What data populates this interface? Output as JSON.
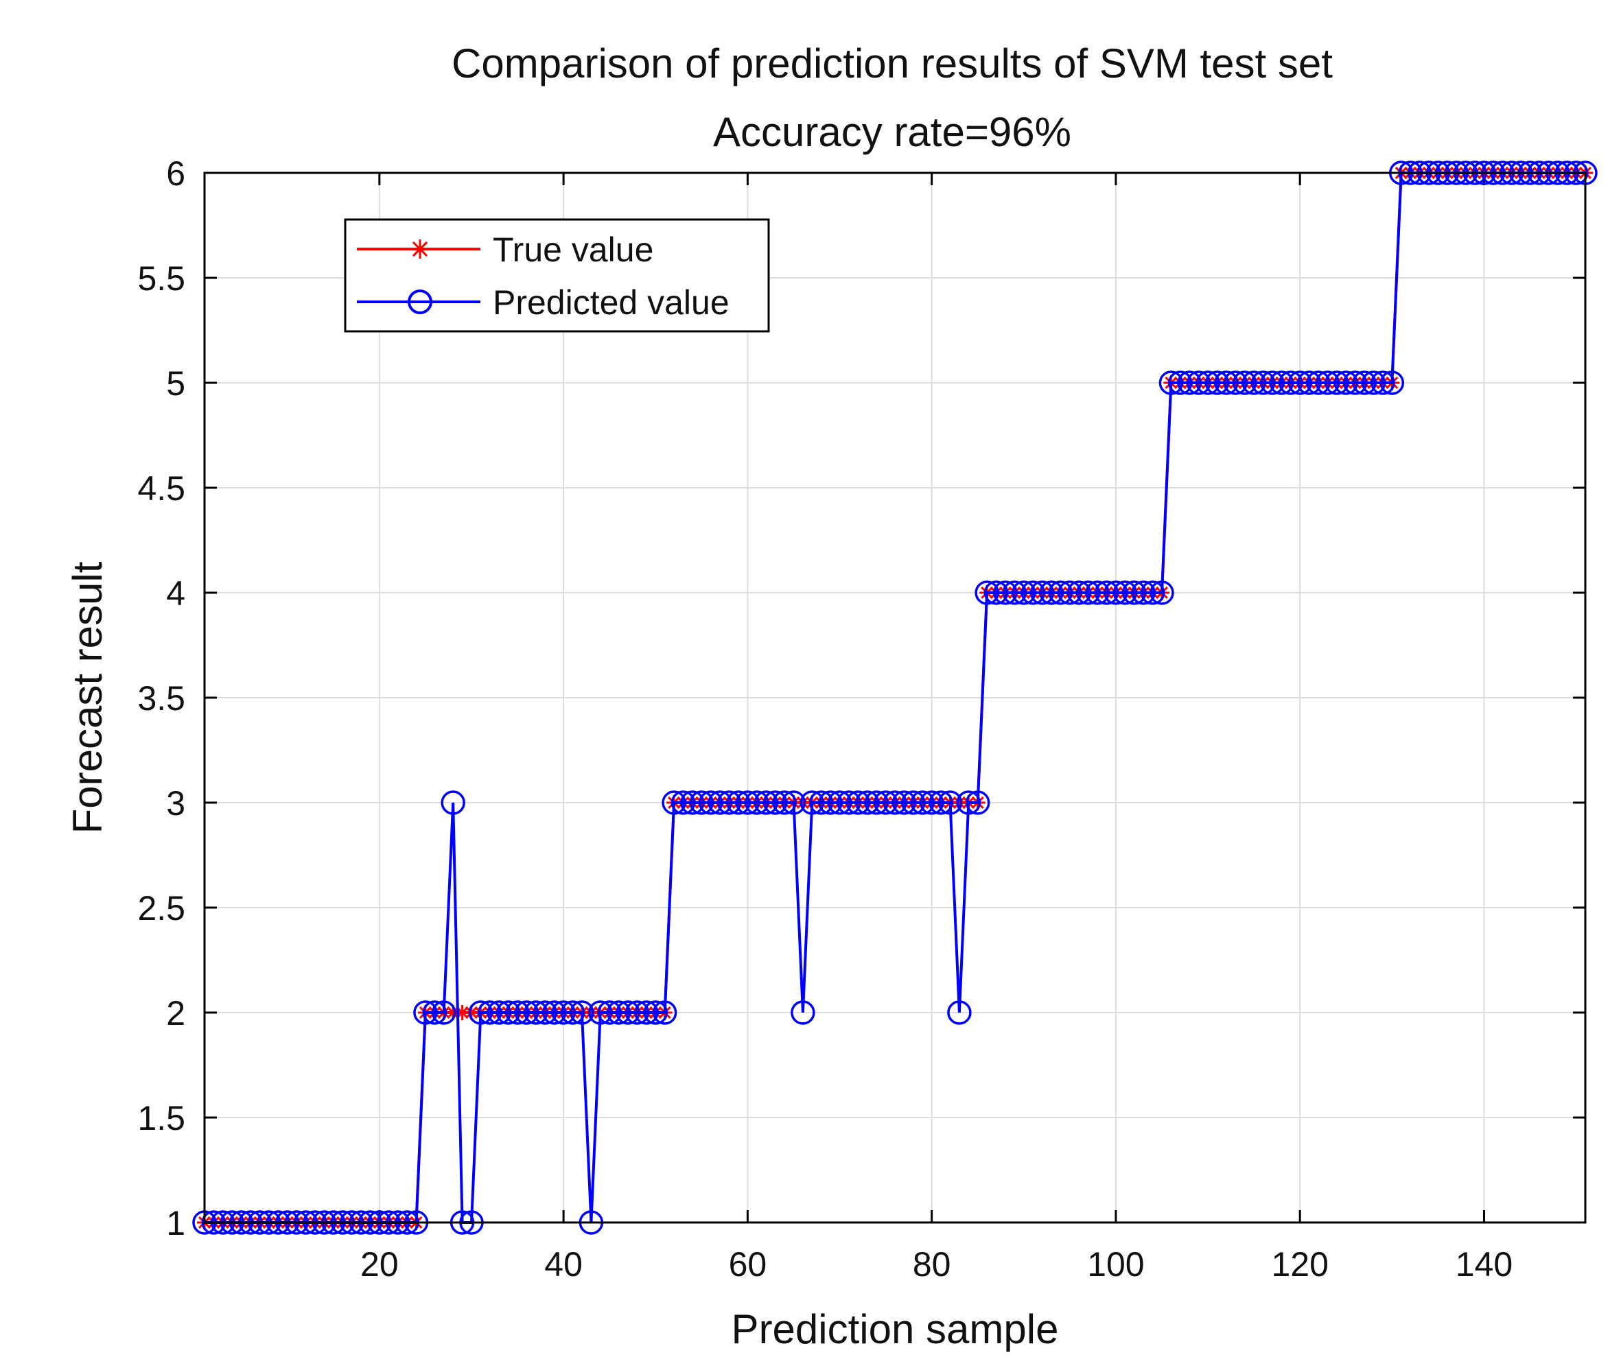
{
  "chart_data": {
    "type": "line",
    "title": "Comparison of prediction results of SVM test set",
    "subtitle": "Accuracy rate=96%",
    "xlabel": "Prediction sample",
    "ylabel": "Forecast result",
    "xlim": [
      1,
      151
    ],
    "ylim": [
      1,
      6
    ],
    "xticks": [
      20,
      40,
      60,
      80,
      100,
      120,
      140
    ],
    "yticks": [
      1,
      1.5,
      2,
      2.5,
      3,
      3.5,
      4,
      4.5,
      5,
      5.5,
      6
    ],
    "grid": true,
    "legend_position": "top-left",
    "true_segments": [
      {
        "from": 1,
        "to": 24,
        "value": 1
      },
      {
        "from": 25,
        "to": 51,
        "value": 2
      },
      {
        "from": 52,
        "to": 85,
        "value": 3
      },
      {
        "from": 86,
        "to": 105,
        "value": 4
      },
      {
        "from": 106,
        "to": 130,
        "value": 5
      },
      {
        "from": 131,
        "to": 151,
        "value": 6
      }
    ],
    "predicted_errors": [
      {
        "x": 28,
        "value": 3
      },
      {
        "x": 29,
        "value": 1
      },
      {
        "x": 30,
        "value": 1
      },
      {
        "x": 43,
        "value": 1
      },
      {
        "x": 66,
        "value": 2
      },
      {
        "x": 83,
        "value": 2
      }
    ],
    "series": [
      {
        "name": "True value",
        "color": "#ff0000",
        "marker": "asterisk"
      },
      {
        "name": "Predicted value",
        "color": "#0000ff",
        "marker": "circle"
      }
    ]
  }
}
